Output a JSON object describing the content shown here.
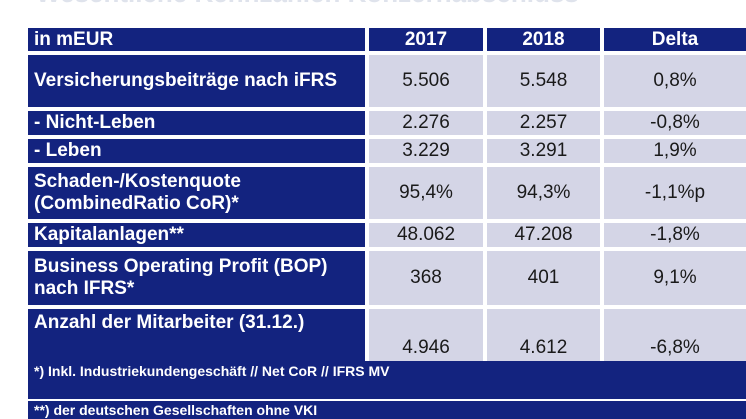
{
  "table": {
    "header": {
      "label": "in mEUR",
      "col1": "2017",
      "col2": "2018",
      "col3": "Delta"
    },
    "rows": [
      {
        "label": "Versicherungsbeiträge nach iFRS",
        "v2017": "5.506",
        "v2018": "5.548",
        "delta": "0,8%"
      },
      {
        "label": "- Nicht-Leben",
        "v2017": "2.276",
        "v2018": "2.257",
        "delta": "-0,8%"
      },
      {
        "label": "- Leben",
        "v2017": "3.229",
        "v2018": "3.291",
        "delta": "1,9%"
      },
      {
        "label": "Schaden-/Kostenquote (CombinedRatio CoR)*",
        "v2017": "95,4%",
        "v2018": "94,3%",
        "delta": "-1,1%p"
      },
      {
        "label": "Kapitalanlagen**",
        "v2017": "48.062",
        "v2018": "47.208",
        "delta": "-1,8%"
      },
      {
        "label": "Business Operating Profit (BOP) nach IFRS*",
        "v2017": "368",
        "v2018": "401",
        "delta": "9,1%"
      },
      {
        "label": "Anzahl der Mitarbeiter (31.12.)",
        "v2017": "4.946",
        "v2018": "4.612",
        "delta": "-6,8%"
      }
    ],
    "footnotes": [
      "*) Inkl. Industriekundengeschäft // Net CoR // IFRS MV",
      "**) der deutschen Gesellschaften ohne VKI"
    ]
  },
  "colors": {
    "header_bg": "#13237f",
    "value_bg": "#d4d5e6",
    "text_light": "#ffffff"
  }
}
